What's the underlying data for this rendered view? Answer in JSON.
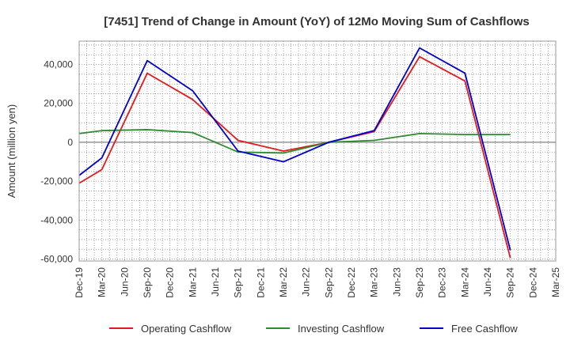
{
  "chart_data": {
    "type": "line",
    "title": "[7451]  Trend of Change in Amount (YoY) of 12Mo Moving Sum of Cashflows",
    "xlabel": "",
    "ylabel": "Amount (million yen)",
    "ylim": [
      -61000,
      52000
    ],
    "yticks": [
      40000,
      20000,
      0,
      -20000,
      -40000,
      -60000
    ],
    "ytick_labels": [
      "40,000",
      "20,000",
      "0",
      "-20,000",
      "-40,000",
      "-60,000"
    ],
    "categories": [
      "Dec-19",
      "Mar-20",
      "Jun-20",
      "Sep-20",
      "Dec-20",
      "Mar-21",
      "Jun-21",
      "Sep-21",
      "Dec-21",
      "Mar-22",
      "Jun-22",
      "Sep-22",
      "Dec-22",
      "Mar-23",
      "Jun-23",
      "Sep-23",
      "Dec-23",
      "Mar-24",
      "Jun-24",
      "Sep-24",
      "Dec-24",
      "Mar-25"
    ],
    "series": [
      {
        "name": "Operating Cashflow",
        "color": "#e31a1c",
        "values": [
          -21000,
          -14000,
          null,
          35500,
          null,
          22000,
          null,
          1000,
          null,
          -4500,
          null,
          0,
          null,
          5500,
          null,
          44000,
          null,
          31500,
          null,
          -59500,
          null,
          null
        ]
      },
      {
        "name": "Investing Cashflow",
        "color": "#2e8b2e",
        "values": [
          4500,
          6000,
          null,
          6500,
          null,
          5000,
          null,
          -5000,
          null,
          -5500,
          null,
          0,
          null,
          1000,
          null,
          4500,
          null,
          4000,
          null,
          4000,
          null,
          null
        ]
      },
      {
        "name": "Free Cashflow",
        "color": "#0000cc",
        "values": [
          -17000,
          -8000,
          null,
          42000,
          null,
          26500,
          null,
          -4500,
          null,
          -10000,
          null,
          0,
          null,
          6000,
          null,
          48500,
          null,
          35500,
          null,
          -55500,
          null,
          null
        ]
      }
    ],
    "legend_position": "bottom",
    "grid": true
  }
}
